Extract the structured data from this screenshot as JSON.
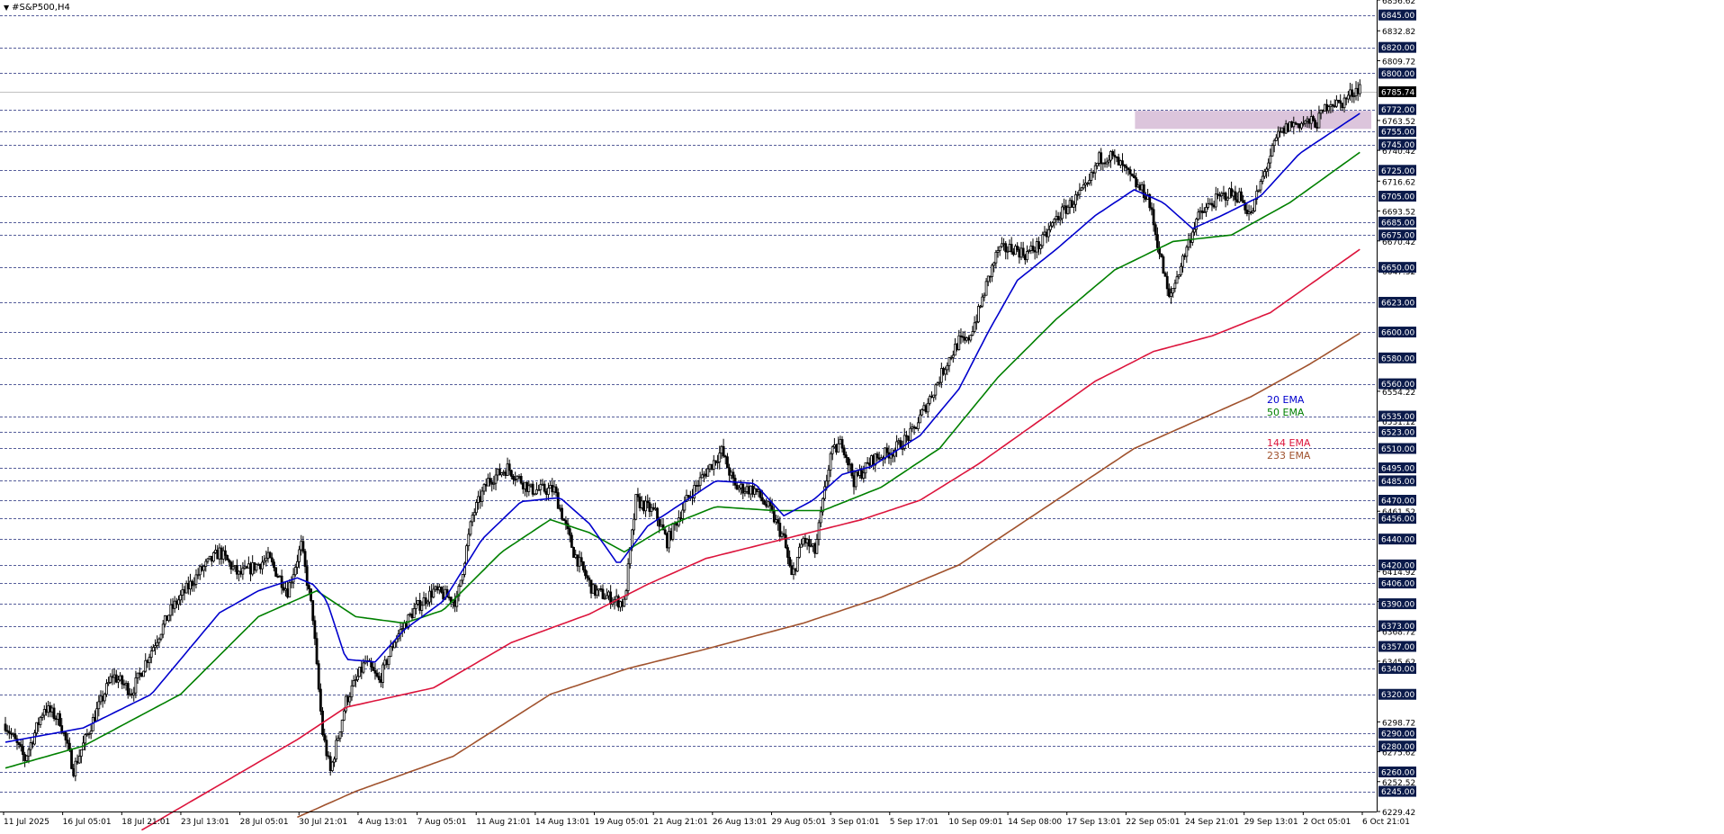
{
  "window": {
    "title": "#S&P500,H4",
    "price_tag": "6785.74"
  },
  "colors": {
    "background": "#ffffff",
    "candle": "#000000",
    "grid": "#1f2a7a",
    "ema20": "#0000cd",
    "ema50": "#008000",
    "ema144": "#dc143c",
    "ema233": "#a0522d",
    "zone": "#d8bfd8",
    "price_line": "#c0c0c0"
  },
  "chart_data": {
    "type": "candlestick",
    "symbol": "#S&P500",
    "timeframe": "H4",
    "ylim": [
      6229.42,
      6856.62
    ],
    "current_price": 6785.74,
    "resistance_zone": {
      "x_from": "22 Sep 05:01",
      "x_to": "6 Oct 21:01",
      "y_from": 6757,
      "y_to": 6771
    },
    "levels": [
      6845.0,
      6820.0,
      6800.0,
      6772.0,
      6755.0,
      6745.0,
      6725.0,
      6705.0,
      6685.0,
      6675.0,
      6650.0,
      6623.0,
      6600.0,
      6580.0,
      6560.0,
      6535.0,
      6523.0,
      6510.0,
      6495.0,
      6485.0,
      6470.0,
      6456.0,
      6440.0,
      6420.0,
      6406.0,
      6390.0,
      6373.0,
      6357.0,
      6340.0,
      6320.0,
      6290.0,
      6280.0,
      6260.0,
      6245.0
    ],
    "y_ticks": [
      "6856.62",
      "6832.82",
      "6809.72",
      "6763.52",
      "6740.42",
      "6716.62",
      "6693.52",
      "6670.42",
      "6647.32",
      "6554.22",
      "6531.12",
      "6461.52",
      "6414.92",
      "6391.82",
      "6368.72",
      "6345.62",
      "6298.72",
      "6275.62",
      "6252.52",
      "6229.42"
    ],
    "x_ticks": [
      "11 Jul 2025",
      "16 Jul 05:01",
      "18 Jul 21:01",
      "23 Jul 13:01",
      "28 Jul 05:01",
      "30 Jul 21:01",
      "4 Aug 13:01",
      "7 Aug 05:01",
      "11 Aug 21:01",
      "14 Aug 13:01",
      "19 Aug 05:01",
      "21 Aug 21:01",
      "26 Aug 13:01",
      "29 Aug 05:01",
      "3 Sep 01:01",
      "5 Sep 17:01",
      "10 Sep 09:01",
      "14 Sep 08:00",
      "17 Sep 13:01",
      "22 Sep 05:01",
      "24 Sep 21:01",
      "29 Sep 13:01",
      "2 Oct 05:01",
      "6 Oct 21:01"
    ],
    "close_anchors": [
      [
        0,
        6297
      ],
      [
        10,
        6270
      ],
      [
        20,
        6310
      ],
      [
        28,
        6300
      ],
      [
        35,
        6262
      ],
      [
        45,
        6300
      ],
      [
        55,
        6335
      ],
      [
        65,
        6322
      ],
      [
        72,
        6345
      ],
      [
        85,
        6385
      ],
      [
        100,
        6415
      ],
      [
        110,
        6430
      ],
      [
        120,
        6412
      ],
      [
        135,
        6425
      ],
      [
        145,
        6400
      ],
      [
        152,
        6435
      ],
      [
        158,
        6380
      ],
      [
        160,
        6340
      ],
      [
        163,
        6290
      ],
      [
        167,
        6260
      ],
      [
        175,
        6315
      ],
      [
        185,
        6345
      ],
      [
        192,
        6330
      ],
      [
        200,
        6362
      ],
      [
        210,
        6385
      ],
      [
        220,
        6400
      ],
      [
        232,
        6392
      ],
      [
        240,
        6458
      ],
      [
        248,
        6485
      ],
      [
        258,
        6495
      ],
      [
        270,
        6478
      ],
      [
        282,
        6478
      ],
      [
        292,
        6430
      ],
      [
        302,
        6400
      ],
      [
        310,
        6395
      ],
      [
        318,
        6390
      ],
      [
        324,
        6470
      ],
      [
        334,
        6460
      ],
      [
        340,
        6438
      ],
      [
        350,
        6470
      ],
      [
        360,
        6492
      ],
      [
        368,
        6508
      ],
      [
        375,
        6480
      ],
      [
        385,
        6478
      ],
      [
        393,
        6462
      ],
      [
        400,
        6440
      ],
      [
        404,
        6410
      ],
      [
        410,
        6440
      ],
      [
        416,
        6430
      ],
      [
        424,
        6505
      ],
      [
        430,
        6515
      ],
      [
        436,
        6485
      ],
      [
        446,
        6502
      ],
      [
        456,
        6508
      ],
      [
        466,
        6522
      ],
      [
        476,
        6552
      ],
      [
        484,
        6577
      ],
      [
        490,
        6593
      ],
      [
        494,
        6592
      ],
      [
        500,
        6615
      ],
      [
        504,
        6636
      ],
      [
        510,
        6663
      ],
      [
        518,
        6665
      ],
      [
        524,
        6660
      ],
      [
        532,
        6668
      ],
      [
        540,
        6688
      ],
      [
        548,
        6700
      ],
      [
        556,
        6712
      ],
      [
        562,
        6734
      ],
      [
        568,
        6736
      ],
      [
        574,
        6727
      ],
      [
        582,
        6712
      ],
      [
        587,
        6705
      ],
      [
        593,
        6662
      ],
      [
        598,
        6625
      ],
      [
        604,
        6652
      ],
      [
        612,
        6687
      ],
      [
        620,
        6700
      ],
      [
        628,
        6707
      ],
      [
        634,
        6705
      ],
      [
        640,
        6690
      ],
      [
        644,
        6710
      ],
      [
        648,
        6728
      ],
      [
        654,
        6752
      ],
      [
        660,
        6760
      ],
      [
        668,
        6762
      ],
      [
        674,
        6762
      ],
      [
        680,
        6778
      ],
      [
        686,
        6776
      ],
      [
        692,
        6785
      ],
      [
        696,
        6790
      ]
    ],
    "ema_labels": [
      "20 EMA",
      "50 EMA",
      "144 EMA",
      "233 EMA"
    ],
    "ema_values": {
      "ema20": [
        [
          0,
          6283
        ],
        [
          40,
          6294
        ],
        [
          75,
          6320
        ],
        [
          110,
          6383
        ],
        [
          130,
          6400
        ],
        [
          150,
          6410
        ],
        [
          158,
          6405
        ],
        [
          165,
          6393
        ],
        [
          175,
          6347
        ],
        [
          190,
          6345
        ],
        [
          205,
          6370
        ],
        [
          225,
          6392
        ],
        [
          245,
          6440
        ],
        [
          265,
          6469
        ],
        [
          285,
          6472
        ],
        [
          300,
          6452
        ],
        [
          315,
          6420
        ],
        [
          330,
          6450
        ],
        [
          345,
          6465
        ],
        [
          365,
          6485
        ],
        [
          385,
          6483
        ],
        [
          400,
          6458
        ],
        [
          415,
          6470
        ],
        [
          430,
          6490
        ],
        [
          445,
          6496
        ],
        [
          470,
          6520
        ],
        [
          490,
          6556
        ],
        [
          505,
          6600
        ],
        [
          520,
          6640
        ],
        [
          540,
          6664
        ],
        [
          560,
          6690
        ],
        [
          580,
          6710
        ],
        [
          595,
          6700
        ],
        [
          610,
          6680
        ],
        [
          625,
          6690
        ],
        [
          645,
          6705
        ],
        [
          665,
          6738
        ],
        [
          685,
          6758
        ],
        [
          697,
          6770
        ]
      ],
      "ema50": [
        [
          0,
          6263
        ],
        [
          40,
          6280
        ],
        [
          90,
          6320
        ],
        [
          130,
          6380
        ],
        [
          160,
          6400
        ],
        [
          180,
          6380
        ],
        [
          205,
          6375
        ],
        [
          225,
          6385
        ],
        [
          255,
          6430
        ],
        [
          280,
          6455
        ],
        [
          300,
          6445
        ],
        [
          318,
          6430
        ],
        [
          340,
          6450
        ],
        [
          365,
          6465
        ],
        [
          395,
          6462
        ],
        [
          420,
          6462
        ],
        [
          450,
          6480
        ],
        [
          480,
          6510
        ],
        [
          510,
          6565
        ],
        [
          540,
          6610
        ],
        [
          570,
          6648
        ],
        [
          600,
          6670
        ],
        [
          630,
          6675
        ],
        [
          660,
          6700
        ],
        [
          697,
          6740
        ]
      ],
      "ema144": [
        [
          70,
          6215
        ],
        [
          110,
          6250
        ],
        [
          150,
          6285
        ],
        [
          175,
          6310
        ],
        [
          220,
          6325
        ],
        [
          260,
          6360
        ],
        [
          300,
          6382
        ],
        [
          330,
          6405
        ],
        [
          360,
          6425
        ],
        [
          400,
          6440
        ],
        [
          440,
          6455
        ],
        [
          470,
          6470
        ],
        [
          500,
          6498
        ],
        [
          530,
          6530
        ],
        [
          560,
          6562
        ],
        [
          590,
          6585
        ],
        [
          620,
          6597
        ],
        [
          650,
          6615
        ],
        [
          697,
          6665
        ]
      ],
      "ema233": [
        [
          150,
          6225
        ],
        [
          180,
          6245
        ],
        [
          230,
          6272
        ],
        [
          280,
          6320
        ],
        [
          320,
          6340
        ],
        [
          360,
          6355
        ],
        [
          410,
          6375
        ],
        [
          450,
          6395
        ],
        [
          490,
          6420
        ],
        [
          520,
          6450
        ],
        [
          550,
          6480
        ],
        [
          580,
          6510
        ],
        [
          610,
          6530
        ],
        [
          640,
          6550
        ],
        [
          670,
          6575
        ],
        [
          697,
          6600
        ]
      ]
    }
  }
}
